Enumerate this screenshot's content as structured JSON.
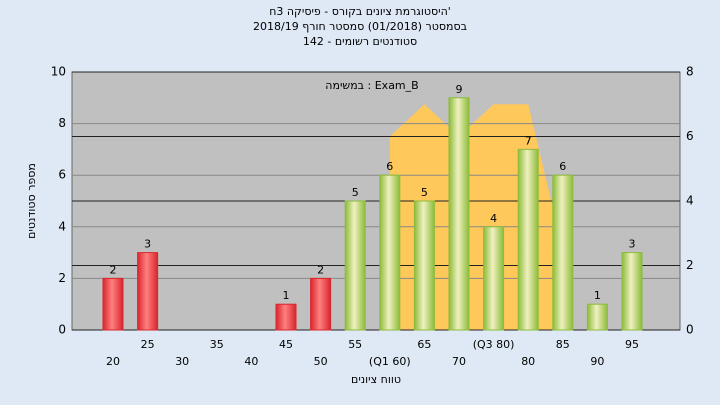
{
  "chart_data": {
    "type": "bar",
    "title": "היסטוגרמת ציונים בקורס - פיסיקה 3ח'",
    "subtitle": "בסמסטר (01/2018) סמסטר חורף 2018/19",
    "subtitle2": "סטודנטים רשומים - 142",
    "annotation": "במשימה : Exam_B",
    "ylabel": "מספר סטודנטים",
    "xlabel": "טווח ציונים",
    "categories": [
      "20",
      "25",
      "30",
      "35",
      "40",
      "45",
      "50",
      "55",
      "(Q1 60)",
      "65",
      "70",
      "(Q3 80)",
      "80",
      "85",
      "90",
      "95"
    ],
    "values": [
      2,
      3,
      0,
      0,
      0,
      1,
      2,
      5,
      6,
      5,
      9,
      4,
      7,
      6,
      1,
      3
    ],
    "bar_colors": [
      "#d9262c",
      "#d9262c",
      "#d9262c",
      "#d9262c",
      "#d9262c",
      "#d9262c",
      "#d9262c",
      "#8cbc3a",
      "#8cbc3a",
      "#8cbc3a",
      "#8cbc3a",
      "#8cbc3a",
      "#8cbc3a",
      "#8cbc3a",
      "#8cbc3a",
      "#8cbc3a"
    ],
    "ylim": [
      0,
      10
    ],
    "yticks": [
      0,
      2,
      4,
      6,
      8,
      10
    ],
    "y2lim": [
      0,
      8
    ],
    "y2ticks": [
      0,
      2,
      4,
      6,
      8
    ],
    "area": {
      "axis": "y2",
      "color": "#ffc85a",
      "values": [
        null,
        null,
        null,
        null,
        null,
        null,
        null,
        null,
        6,
        7,
        6,
        7,
        7,
        2.5,
        null,
        null
      ]
    },
    "grid": true
  }
}
